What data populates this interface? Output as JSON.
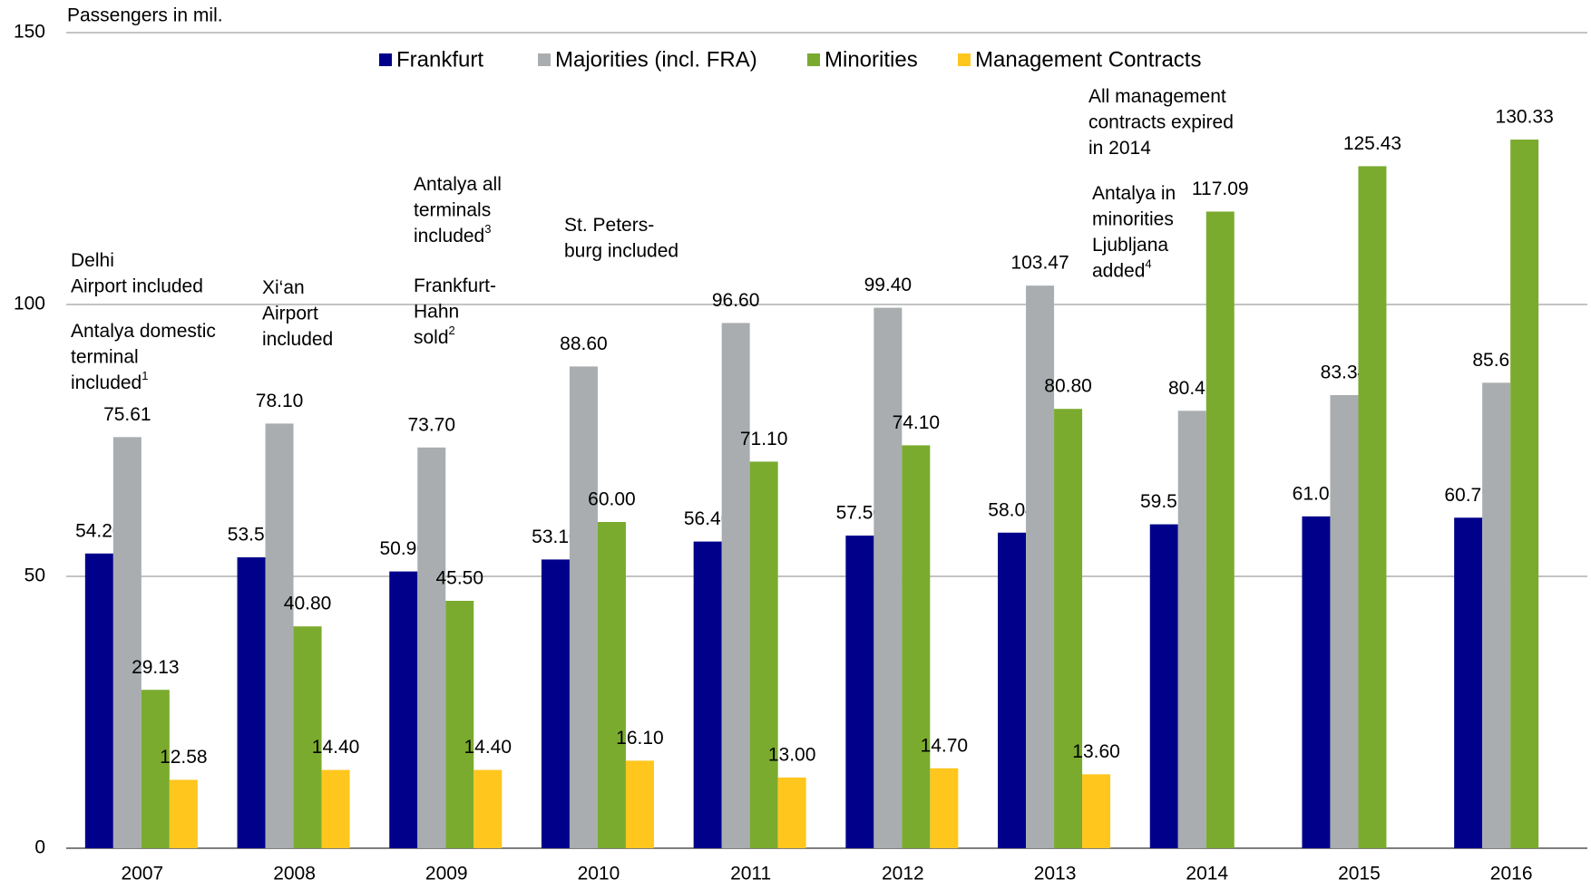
{
  "chart_data": {
    "type": "bar",
    "y_axis_label": "Passengers in mil.",
    "categories": [
      "2007",
      "2008",
      "2009",
      "2010",
      "2011",
      "2012",
      "2013",
      "2014",
      "2015",
      "2016"
    ],
    "series": [
      {
        "name": "Frankfurt",
        "color": "#00008b",
        "values": [
          54.2,
          53.5,
          50.9,
          53.1,
          56.4,
          57.5,
          58.04,
          59.57,
          61.03,
          60.79
        ],
        "value_labels": [
          "54.20",
          "53.50",
          "50.90",
          "53.10",
          "56.40",
          "57.50",
          "58.04",
          "59.57",
          "61.03",
          "60.79"
        ]
      },
      {
        "name": "Majorities (incl. FRA)",
        "color": "#a9adaf",
        "values": [
          75.61,
          78.1,
          73.7,
          88.6,
          96.6,
          99.4,
          103.47,
          80.45,
          83.34,
          85.61
        ],
        "value_labels": [
          "75.61",
          "78.10",
          "73.70",
          "88.60",
          "96.60",
          "99.40",
          "103.47",
          "80.45",
          "83.34",
          "85.61"
        ]
      },
      {
        "name": "Minorities",
        "color": "#7aab2e",
        "values": [
          29.13,
          40.8,
          45.5,
          60,
          71.1,
          74.1,
          80.8,
          117.09,
          125.43,
          130.33
        ],
        "value_labels": [
          "29.13",
          "40.80",
          "45.50",
          "60.00",
          "71.10",
          "74.10",
          "80.80",
          "117.09",
          "125.43",
          "130.33"
        ]
      },
      {
        "name": "Management Contracts",
        "color": "#ffc61e",
        "values": [
          12.58,
          14.4,
          14.4,
          16.1,
          13,
          14.7,
          13.6,
          null,
          null,
          null
        ],
        "value_labels": [
          "12.58",
          "14.40",
          "14.40",
          "16.10",
          "13.00",
          "14.70",
          "13.60",
          null,
          null,
          null
        ]
      }
    ],
    "ylim": [
      0,
      150
    ],
    "yticks": [
      0,
      50,
      100,
      150
    ],
    "grid": true,
    "legend": "top",
    "annotations": [
      {
        "lines": [
          {
            "text": "Delhi"
          },
          {
            "text": "Airport included"
          }
        ]
      },
      {
        "lines": [
          {
            "text": "Antalya domestic"
          },
          {
            "text": "terminal"
          },
          {
            "text": "included",
            "sup": "1"
          }
        ]
      },
      {
        "lines": [
          {
            "text": "Xi‘an"
          },
          {
            "text": "Airport"
          },
          {
            "text": "included"
          }
        ]
      },
      {
        "lines": [
          {
            "text": "Antalya all"
          },
          {
            "text": "terminals"
          },
          {
            "text": "included",
            "sup": "3"
          }
        ]
      },
      {
        "lines": [
          {
            "text": "Frankfurt-"
          },
          {
            "text": "Hahn"
          },
          {
            "text": "sold",
            "sup": "2"
          }
        ]
      },
      {
        "lines": [
          {
            "text": "St. Peters-"
          },
          {
            "text": "burg included"
          }
        ]
      },
      {
        "lines": [
          {
            "text": "All management"
          },
          {
            "text": "contracts expired"
          },
          {
            "text": "in 2014"
          }
        ]
      },
      {
        "lines": [
          {
            "text": "Antalya in"
          },
          {
            "text": "minorities"
          },
          {
            "text": "Ljubljana"
          },
          {
            "text": "added",
            "sup": "4"
          }
        ]
      }
    ]
  }
}
